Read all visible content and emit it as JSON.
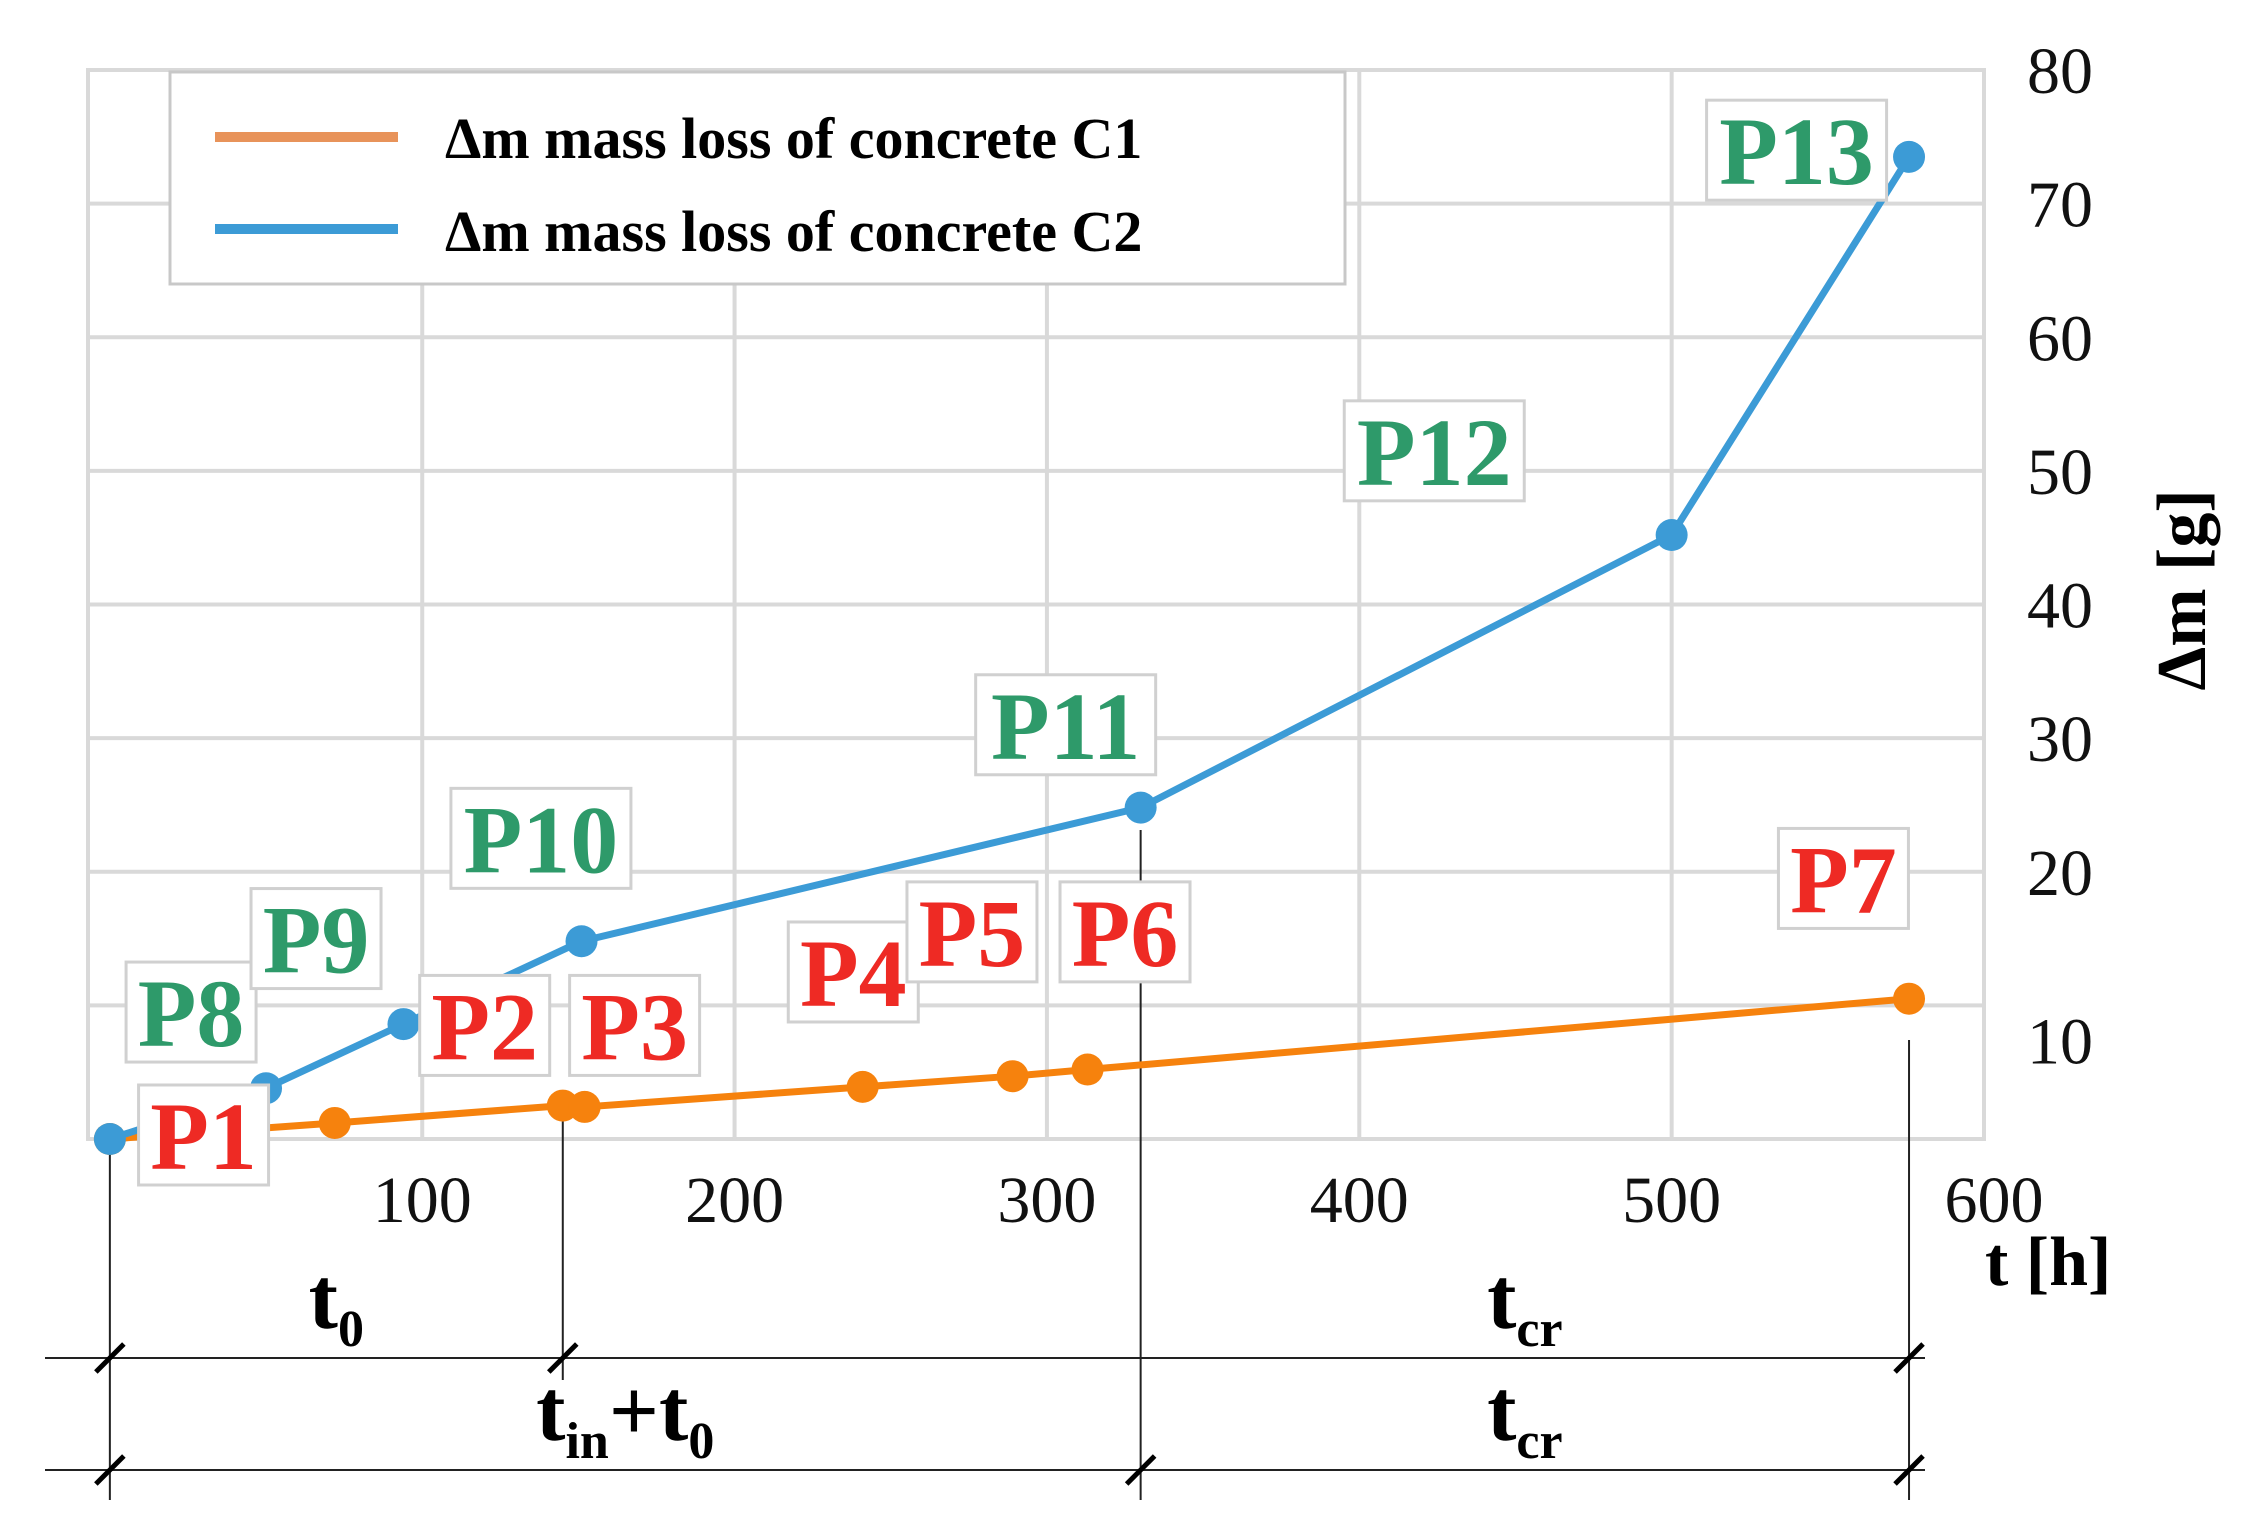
{
  "chart_data": {
    "type": "line",
    "xlabel": "t [h]",
    "ylabel": "Δm [g]",
    "xlim": [
      -7,
      600
    ],
    "ylim": [
      0,
      80
    ],
    "xticks": [
      100,
      200,
      300,
      400,
      500,
      600
    ],
    "yticks": [
      10,
      20,
      30,
      40,
      50,
      60,
      70,
      80
    ],
    "grid": true,
    "legend_position": "top-left",
    "colors": {
      "c1": "#F6820D",
      "c2": "#3C9BD6",
      "c1_labels": "#EE2A24",
      "c2_labels": "#2E9A6A",
      "grid": "#D9D9D9",
      "legend_c1_swatch": "#E8935A"
    },
    "series": [
      {
        "name": "Δm mass loss of concrete C1",
        "color": "#F6820D",
        "x": [
          0,
          72,
          145,
          152,
          241,
          289,
          313,
          576
        ],
        "y": [
          0,
          1.2,
          2.5,
          2.4,
          3.9,
          4.7,
          5.2,
          10.5
        ]
      },
      {
        "name": "Δm mass loss of concrete C2",
        "color": "#3C9BD6",
        "x": [
          0,
          50,
          94,
          151,
          330,
          500,
          576
        ],
        "y": [
          0,
          3.8,
          8.6,
          14.8,
          24.8,
          45.2,
          73.5
        ]
      }
    ],
    "point_labels": [
      {
        "text": "P1",
        "series": "C1",
        "x": 30,
        "y": 0.3
      },
      {
        "text": "P2",
        "series": "C1",
        "x": 120,
        "y": 8.5
      },
      {
        "text": "P3",
        "series": "C1",
        "x": 168,
        "y": 8.5
      },
      {
        "text": "P4",
        "series": "C1",
        "x": 238,
        "y": 12.5
      },
      {
        "text": "P5",
        "series": "C1",
        "x": 276,
        "y": 15.5
      },
      {
        "text": "P6",
        "series": "C1",
        "x": 325,
        "y": 15.5
      },
      {
        "text": "P7",
        "series": "C1",
        "x": 555,
        "y": 19.5
      },
      {
        "text": "P8",
        "series": "C2",
        "x": 26,
        "y": 9.5
      },
      {
        "text": "P9",
        "series": "C2",
        "x": 66,
        "y": 15
      },
      {
        "text": "P10",
        "series": "C2",
        "x": 138,
        "y": 22.5
      },
      {
        "text": "P11",
        "series": "C2",
        "x": 306,
        "y": 31
      },
      {
        "text": "P12",
        "series": "C2",
        "x": 424,
        "y": 51.5
      },
      {
        "text": "P13",
        "series": "C2",
        "x": 540,
        "y": 74
      }
    ],
    "dimensions": [
      {
        "id": "t0",
        "main": "t",
        "sub": "0",
        "x_start": 0,
        "x_end": 145,
        "row": 1
      },
      {
        "id": "tcr_top",
        "main": "t",
        "sub": "cr",
        "x_start": 330,
        "x_end": 576,
        "row": 1
      },
      {
        "id": "tin_t0",
        "main": "t",
        "sub": "in",
        "plus": "+",
        "main2": "t",
        "sub2": "0",
        "x_start": 0,
        "x_end": 330,
        "row": 2
      },
      {
        "id": "tcr_bottom",
        "main": "t",
        "sub": "cr",
        "x_start": 330,
        "x_end": 576,
        "row": 2
      }
    ]
  }
}
